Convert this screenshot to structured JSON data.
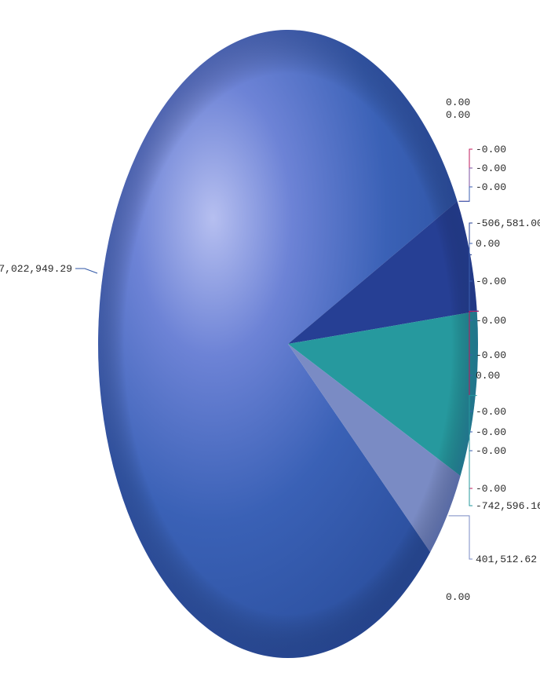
{
  "chart_data": {
    "type": "pie",
    "title": "",
    "legend": "none",
    "slices": [
      {
        "label": "7,022,949.29",
        "value": 7022949.29,
        "color": "#2f56a6"
      },
      {
        "label": "0.00",
        "value": 0,
        "color": "#2f56a6"
      },
      {
        "label": "0.00",
        "value": 0,
        "color": "#2f56a6"
      },
      {
        "label": "-0.00",
        "value": 0,
        "color": "#c2185b"
      },
      {
        "label": "-0.00",
        "value": 0,
        "color": "#7b4fa0"
      },
      {
        "label": "-0.00",
        "value": 0,
        "color": "#3b5fb0"
      },
      {
        "label": "-506,581.00",
        "value": 506581,
        "color": "#263f94"
      },
      {
        "label": "0.00",
        "value": 0,
        "color": "#3b5fb0"
      },
      {
        "label": "-0.00",
        "value": 0,
        "color": "#3b5fb0"
      },
      {
        "label": "-0.00",
        "value": 0,
        "color": "#3b5fb0"
      },
      {
        "label": "-0.00",
        "value": 0,
        "color": "#3b5fb0"
      },
      {
        "label": "0.00",
        "value": 0,
        "color": "#3b5fb0"
      },
      {
        "label": "-0.00",
        "value": 0,
        "color": "#3b5fb0"
      },
      {
        "label": "-0.00",
        "value": 0,
        "color": "#3b5fb0"
      },
      {
        "label": "-0.00",
        "value": 0,
        "color": "#3b5fb0"
      },
      {
        "label": "-0.00",
        "value": 0,
        "color": "#c2185b"
      },
      {
        "label": "-742,596.16",
        "value": 742596.16,
        "color": "#26999e"
      },
      {
        "label": "401,512.62",
        "value": 401512.62,
        "color": "#7a8bc4"
      },
      {
        "label": "0.00",
        "value": 0,
        "color": "#2f56a6"
      }
    ],
    "label_y": [
      130,
      146,
      190,
      214,
      238,
      284,
      310,
      358,
      408,
      452,
      478,
      524,
      550,
      574,
      622,
      644,
      712,
      760
    ],
    "main_label_y": 342,
    "start_angle_deg": -27,
    "direction": "clockwise"
  }
}
